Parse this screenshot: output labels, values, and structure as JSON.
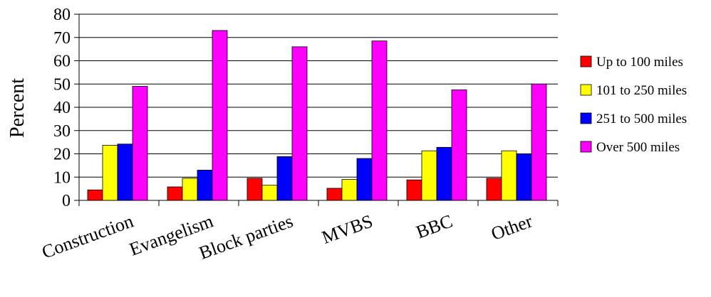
{
  "chart_data": {
    "type": "bar",
    "title": "",
    "xlabel": "",
    "ylabel": "Percent",
    "ylim": [
      0,
      80
    ],
    "yticks": [
      0,
      10,
      20,
      30,
      40,
      50,
      60,
      70,
      80
    ],
    "grid": true,
    "legend_position": "right",
    "categories": [
      "Construction",
      "Evangelism",
      "Block parties",
      "MVBS",
      "BBC",
      "Other"
    ],
    "series": [
      {
        "name": "Up to 100 miles",
        "color": "#ff0000",
        "values": [
          4.5,
          5.8,
          9.5,
          5.2,
          8.8,
          9.5
        ]
      },
      {
        "name": "101 to 250 miles",
        "color": "#ffff00",
        "values": [
          23.7,
          9.5,
          6.5,
          9.0,
          21.3,
          21.3
        ]
      },
      {
        "name": "251 to 500 miles",
        "color": "#0000ff",
        "values": [
          24.2,
          13.0,
          18.8,
          18.0,
          22.8,
          20.0
        ]
      },
      {
        "name": "Over 500 miles",
        "color": "#ff00ff",
        "values": [
          49.0,
          73.0,
          66.0,
          68.5,
          47.5,
          50.0
        ]
      }
    ]
  }
}
